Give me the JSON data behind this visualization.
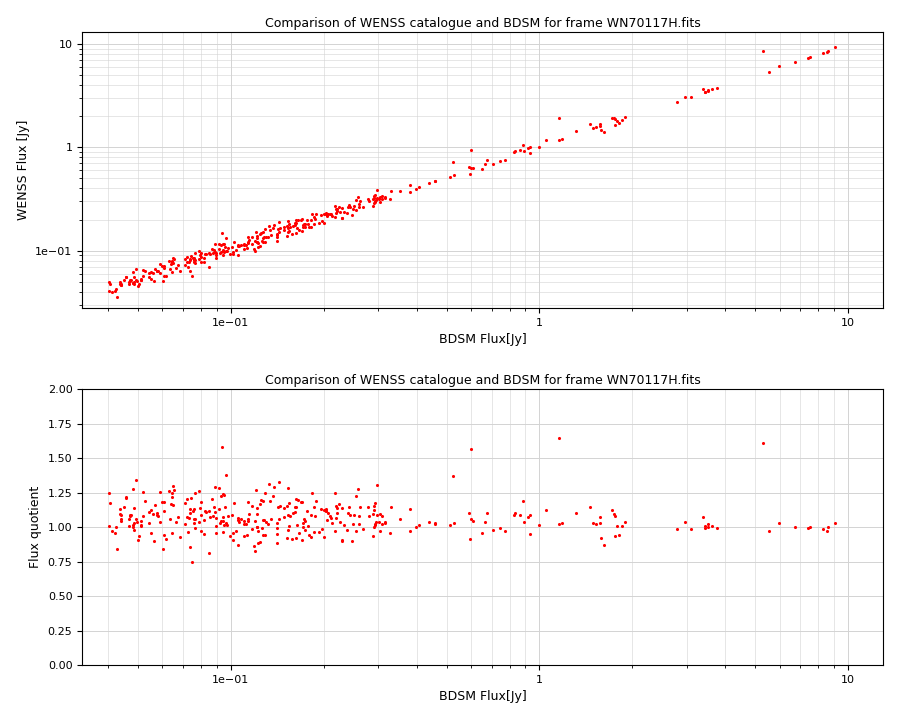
{
  "title": "Comparison of WENSS catalogue and BDSM for frame WN70117H.fits",
  "xlabel": "BDSM Flux[Jy]",
  "ylabel1": "WENSS Flux [Jy]",
  "ylabel2": "Flux quotient",
  "scatter_color": "#ff0000",
  "marker_size": 5,
  "fig_width": 9.0,
  "fig_height": 7.2,
  "dpi": 100,
  "xlim1": [
    0.033,
    13
  ],
  "ylim1": [
    0.028,
    13
  ],
  "xlim2": [
    0.033,
    13
  ],
  "ylim2": [
    0.0,
    2.0
  ],
  "yticks2": [
    0.0,
    0.25,
    0.5,
    0.75,
    1.0,
    1.25,
    1.5,
    1.75,
    2.0
  ],
  "seed": 123
}
